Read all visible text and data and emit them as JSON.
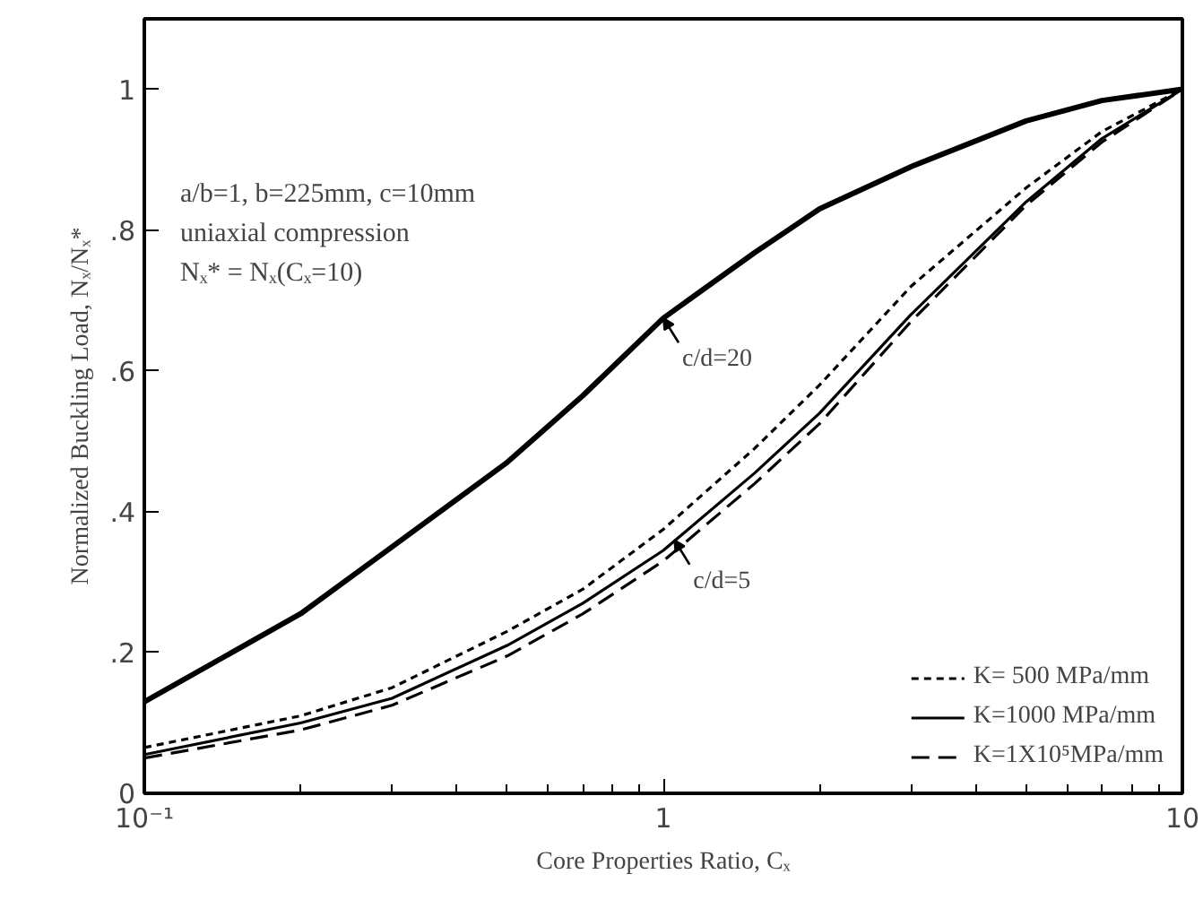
{
  "chart_data": {
    "type": "line",
    "xlabel": "Core Properties Ratio, Cₓ",
    "ylabel": "Normalized Buckling Load, Nₓ/Nₓ*",
    "log": "x",
    "xlim": [
      0.1,
      10
    ],
    "xticks": [
      {
        "value": 0.1,
        "label": "10⁻¹"
      },
      1,
      10
    ],
    "ylim": [
      0,
      1.1
    ],
    "yticks": [
      0,
      {
        "value": 0.2,
        "label": ".2"
      },
      {
        "value": 0.4,
        "label": ".4"
      },
      {
        "value": 0.6,
        "label": ".6"
      },
      {
        "value": 0.8,
        "label": ".8"
      },
      1
    ],
    "grid": false,
    "legend": "bottom right",
    "marker": "none",
    "x": [
      0.1,
      0.2,
      0.3,
      0.5,
      0.7,
      1,
      1.5,
      2,
      3,
      5,
      7,
      10
    ],
    "series": [
      {
        "color": "#000000",
        "line_style": "solid",
        "values": [
          0.13,
          0.255,
          0.35,
          0.47,
          0.565,
          0.675,
          0.768,
          0.83,
          0.89,
          0.955,
          0.984,
          1
        ]
      },
      {
        "name": "K= 500 MPa/mm",
        "color": "#000000",
        "line_style": "dotted",
        "values": [
          0.065,
          0.11,
          0.15,
          0.23,
          0.29,
          0.375,
          0.49,
          0.58,
          0.72,
          0.86,
          0.94,
          1
        ]
      },
      {
        "name": "K=1000 MPa/mm",
        "color": "#000000",
        "line_style": "solid",
        "values": [
          0.055,
          0.1,
          0.135,
          0.21,
          0.27,
          0.345,
          0.455,
          0.54,
          0.68,
          0.84,
          0.93,
          1
        ]
      },
      {
        "name": "K=1X10⁵MPa/mm",
        "color": "#000000",
        "line_style": "dashed",
        "values": [
          0.05,
          0.09,
          0.125,
          0.195,
          0.255,
          0.33,
          0.44,
          0.525,
          0.67,
          0.835,
          0.925,
          1
        ]
      }
    ],
    "annotations": [
      "a/b=1, b=225mm, c=10mm",
      "uniaxial compression",
      "Nₓ* = Nₓ(Cₓ=10)",
      {
        "text": "c/d=20",
        "x": 1,
        "y": 0.675
      },
      {
        "text": "c/d=5",
        "x": 1.05,
        "y": 0.36
      }
    ]
  }
}
